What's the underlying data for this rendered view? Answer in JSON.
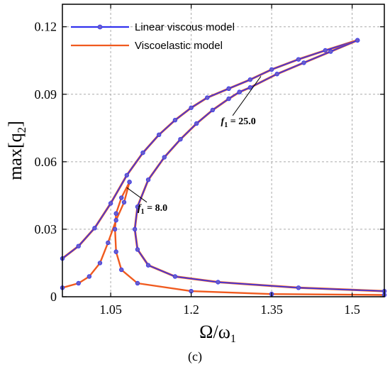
{
  "chart_data": {
    "type": "line",
    "xlabel": "Ω/ω",
    "xlabel_sub": "1",
    "ylabel": "max[q",
    "ylabel_sub": "2",
    "ylabel_close": "]",
    "xlim": [
      0.96,
      1.56
    ],
    "ylim": [
      0,
      0.13
    ],
    "xticks": [
      1.05,
      1.2,
      1.35,
      1.5
    ],
    "xtick_labels": [
      "1.05",
      "1.2",
      "1.35",
      "1.5"
    ],
    "yticks": [
      0,
      0.03,
      0.06,
      0.09,
      0.12
    ],
    "ytick_labels": [
      "0",
      "0.03",
      "0.06",
      "0.09",
      "0.12"
    ],
    "grid": true,
    "legend_position": "top-left",
    "series": [
      {
        "name": "Linear viscous model",
        "color": "#3333ee",
        "marker": "circle",
        "curves": [
          [
            [
              0.96,
              0.017
            ],
            [
              0.99,
              0.0225
            ],
            [
              1.02,
              0.0305
            ],
            [
              1.05,
              0.0415
            ],
            [
              1.08,
              0.054
            ],
            [
              1.11,
              0.064
            ],
            [
              1.14,
              0.072
            ],
            [
              1.17,
              0.0785
            ],
            [
              1.2,
              0.084
            ],
            [
              1.23,
              0.0885
            ],
            [
              1.27,
              0.0925
            ]
          ],
          [
            [
              1.29,
              0.091
            ],
            [
              1.27,
              0.088
            ],
            [
              1.24,
              0.083
            ],
            [
              1.21,
              0.077
            ],
            [
              1.18,
              0.07
            ],
            [
              1.15,
              0.062
            ],
            [
              1.12,
              0.052
            ],
            [
              1.1,
              0.04
            ],
            [
              1.095,
              0.03
            ],
            [
              1.1,
              0.021
            ],
            [
              1.12,
              0.014
            ],
            [
              1.17,
              0.009
            ],
            [
              1.25,
              0.0065
            ],
            [
              1.4,
              0.004
            ],
            [
              1.56,
              0.0025
            ]
          ],
          [
            [
              1.27,
              0.0925
            ],
            [
              1.31,
              0.0965
            ],
            [
              1.35,
              0.101
            ],
            [
              1.4,
              0.1055
            ],
            [
              1.45,
              0.1095
            ],
            [
              1.51,
              0.114
            ]
          ],
          [
            [
              1.51,
              0.114
            ],
            [
              1.46,
              0.109
            ],
            [
              1.41,
              0.104
            ],
            [
              1.36,
              0.099
            ],
            [
              1.31,
              0.093
            ],
            [
              1.29,
              0.091
            ]
          ]
        ]
      },
      {
        "name": "Viscoelastic model",
        "color": "#f05a1e",
        "marker": "none",
        "curves": [
          [
            [
              0.96,
              0.004
            ],
            [
              0.99,
              0.006
            ],
            [
              1.01,
              0.009
            ],
            [
              1.03,
              0.015
            ],
            [
              1.045,
              0.024
            ],
            [
              1.06,
              0.034
            ],
            [
              1.075,
              0.042
            ],
            [
              1.085,
              0.051
            ]
          ],
          [
            [
              1.085,
              0.051
            ],
            [
              1.07,
              0.044
            ],
            [
              1.06,
              0.037
            ],
            [
              1.058,
              0.03
            ],
            [
              1.06,
              0.02
            ],
            [
              1.07,
              0.012
            ],
            [
              1.1,
              0.006
            ],
            [
              1.2,
              0.0025
            ],
            [
              1.35,
              0.0012
            ],
            [
              1.56,
              0.0008
            ]
          ]
        ]
      }
    ],
    "annotations": [
      {
        "label": "f",
        "sub": "1",
        "text": " = 8.0",
        "target": [
          1.08,
          0.0485
        ],
        "at": [
          1.12,
          0.0395
        ]
      },
      {
        "label": "f",
        "sub": "1",
        "text": " = 25.0",
        "target": [
          1.33,
          0.098
        ],
        "at": [
          1.28,
          0.078
        ]
      }
    ]
  },
  "caption": "(c)"
}
